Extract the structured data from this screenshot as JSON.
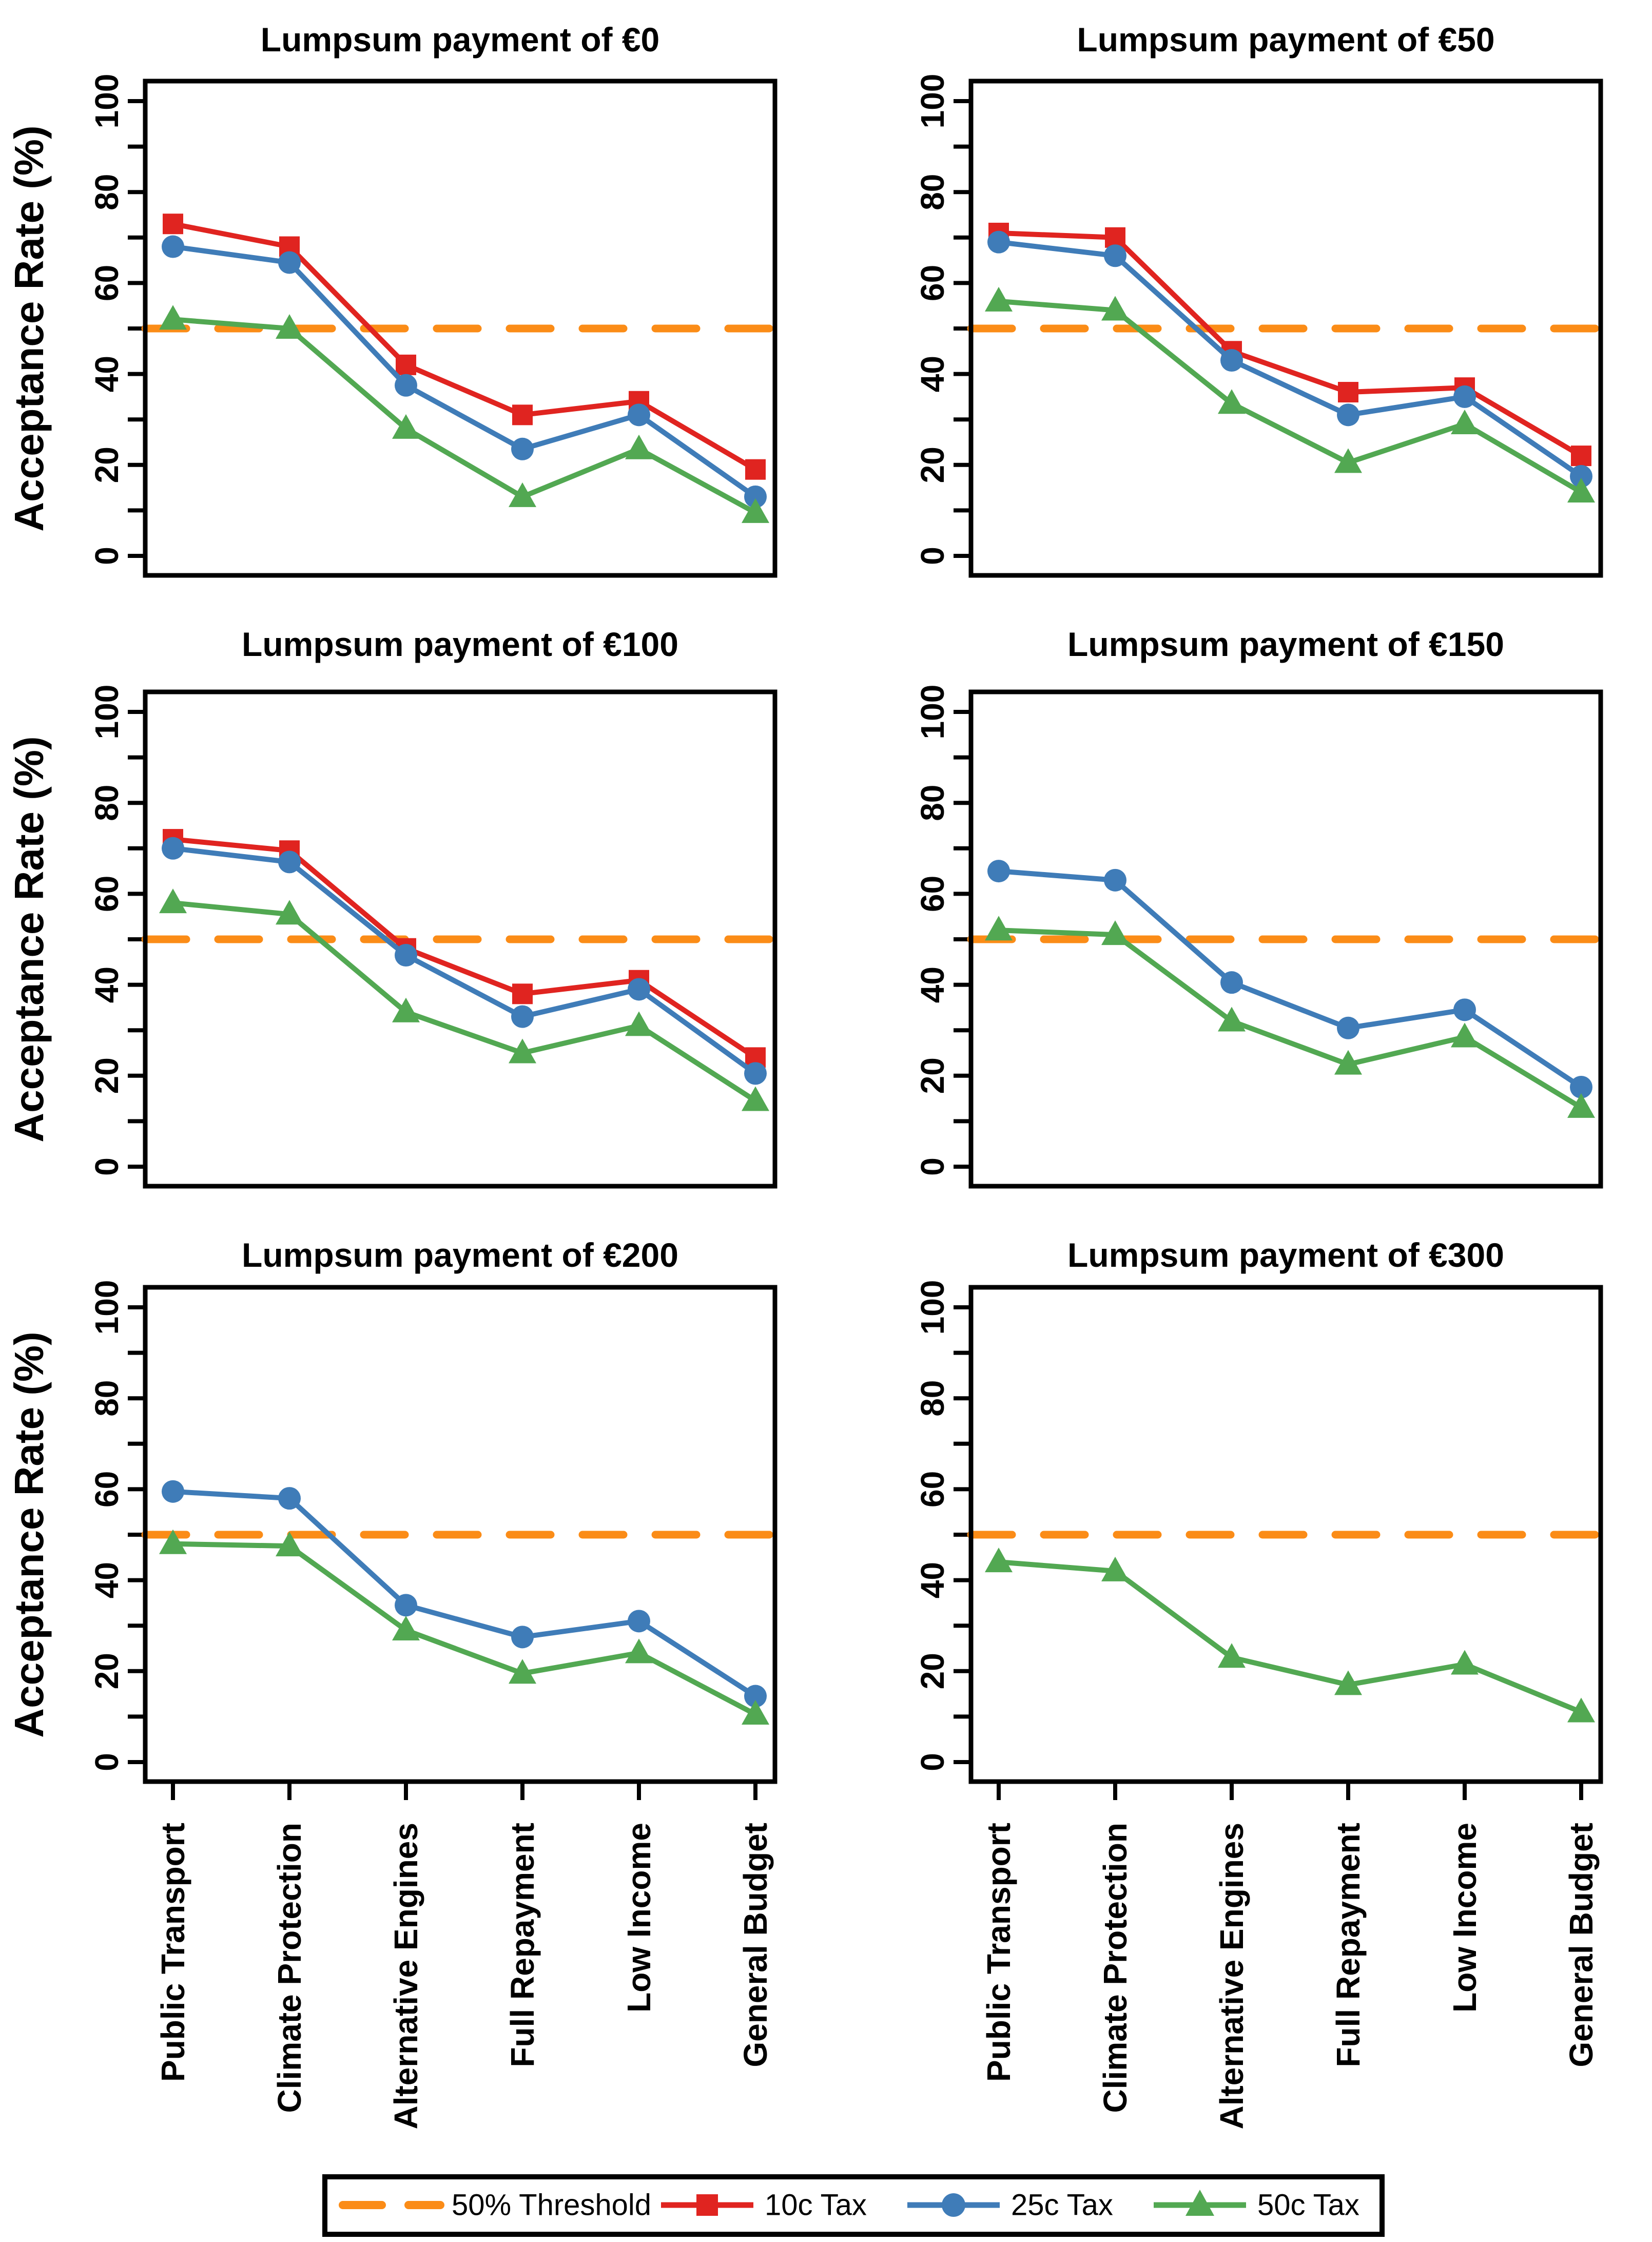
{
  "figure": {
    "ylabel": "Acceptance Rate (%)",
    "categories": [
      "Public Transport",
      "Climate Protection",
      "Alternative Engines",
      "Full Repayment",
      "Low Income",
      "General Budget"
    ],
    "colors": {
      "threshold_orange": "#FB8C17",
      "tax10_red": "#E02420",
      "tax25_blue": "#3F7CB8",
      "tax50_green": "#52A852",
      "axis_black": "#000000",
      "background": "#FFFFFF"
    },
    "threshold_value": 50
  },
  "chart_data": [
    {
      "type": "line",
      "title": "Lumpsum payment of €0",
      "xlabel": "",
      "ylabel": "Acceptance Rate (%)",
      "ylim": [
        0,
        100
      ],
      "ytick_labels": [
        0,
        20,
        40,
        60,
        80,
        100
      ],
      "ytick_step": 10,
      "grid": false,
      "threshold": 50,
      "categories": [
        "Public Transport",
        "Climate Protection",
        "Alternative Engines",
        "Full Repayment",
        "Low Income",
        "General Budget"
      ],
      "series": [
        {
          "name": "10c Tax",
          "color": "#E02420",
          "marker": "square",
          "values": [
            73,
            68,
            42,
            31,
            34,
            19
          ]
        },
        {
          "name": "25c Tax",
          "color": "#3F7CB8",
          "marker": "circle",
          "values": [
            68,
            64.5,
            37.5,
            23.5,
            31,
            13
          ]
        },
        {
          "name": "50c Tax",
          "color": "#52A852",
          "marker": "triangle",
          "values": [
            52,
            50,
            28,
            13,
            23.5,
            9.5
          ]
        }
      ],
      "show_x_labels": false,
      "show_y_title": true
    },
    {
      "type": "line",
      "title": "Lumpsum payment of €50",
      "xlabel": "",
      "ylabel": "",
      "ylim": [
        0,
        100
      ],
      "ytick_labels": [
        0,
        20,
        40,
        60,
        80,
        100
      ],
      "ytick_step": 10,
      "grid": false,
      "threshold": 50,
      "categories": [
        "Public Transport",
        "Climate Protection",
        "Alternative Engines",
        "Full Repayment",
        "Low Income",
        "General Budget"
      ],
      "series": [
        {
          "name": "10c Tax",
          "color": "#E02420",
          "marker": "square",
          "values": [
            71,
            70,
            45,
            36,
            37,
            22
          ]
        },
        {
          "name": "25c Tax",
          "color": "#3F7CB8",
          "marker": "circle",
          "values": [
            69,
            66,
            43,
            31,
            35,
            17.5
          ]
        },
        {
          "name": "50c Tax",
          "color": "#52A852",
          "marker": "triangle",
          "values": [
            56,
            54,
            33.5,
            20.5,
            29,
            14
          ]
        }
      ],
      "show_x_labels": false,
      "show_y_title": false
    },
    {
      "type": "line",
      "title": "Lumpsum payment of €100",
      "xlabel": "",
      "ylabel": "Acceptance Rate (%)",
      "ylim": [
        0,
        100
      ],
      "ytick_labels": [
        0,
        20,
        40,
        60,
        80,
        100
      ],
      "ytick_step": 10,
      "grid": false,
      "threshold": 50,
      "categories": [
        "Public Transport",
        "Climate Protection",
        "Alternative Engines",
        "Full Repayment",
        "Low Income",
        "General Budget"
      ],
      "series": [
        {
          "name": "10c Tax",
          "color": "#E02420",
          "marker": "square",
          "values": [
            72,
            69.5,
            48,
            38,
            41,
            24
          ]
        },
        {
          "name": "25c Tax",
          "color": "#3F7CB8",
          "marker": "circle",
          "values": [
            70,
            67,
            46.5,
            33,
            39,
            20.5
          ]
        },
        {
          "name": "50c Tax",
          "color": "#52A852",
          "marker": "triangle",
          "values": [
            58,
            55.5,
            34,
            25,
            31,
            14.5
          ]
        }
      ],
      "show_x_labels": false,
      "show_y_title": true
    },
    {
      "type": "line",
      "title": "Lumpsum payment of €150",
      "xlabel": "",
      "ylabel": "",
      "ylim": [
        0,
        100
      ],
      "ytick_labels": [
        0,
        20,
        40,
        60,
        80,
        100
      ],
      "ytick_step": 10,
      "grid": false,
      "threshold": 50,
      "categories": [
        "Public Transport",
        "Climate Protection",
        "Alternative Engines",
        "Full Repayment",
        "Low Income",
        "General Budget"
      ],
      "series": [
        {
          "name": "25c Tax",
          "color": "#3F7CB8",
          "marker": "circle",
          "values": [
            65,
            63,
            40.5,
            30.5,
            34.5,
            17.5
          ]
        },
        {
          "name": "50c Tax",
          "color": "#52A852",
          "marker": "triangle",
          "values": [
            52,
            51,
            32,
            22.5,
            28.5,
            13
          ]
        }
      ],
      "show_x_labels": false,
      "show_y_title": false
    },
    {
      "type": "line",
      "title": "Lumpsum payment of €200",
      "xlabel": "",
      "ylabel": "Acceptance Rate (%)",
      "ylim": [
        0,
        100
      ],
      "ytick_labels": [
        0,
        20,
        40,
        60,
        80,
        100
      ],
      "ytick_step": 10,
      "grid": false,
      "threshold": 50,
      "categories": [
        "Public Transport",
        "Climate Protection",
        "Alternative Engines",
        "Full Repayment",
        "Low Income",
        "General Budget"
      ],
      "series": [
        {
          "name": "25c Tax",
          "color": "#3F7CB8",
          "marker": "circle",
          "values": [
            59.5,
            58,
            34.5,
            27.5,
            31,
            14.5
          ]
        },
        {
          "name": "50c Tax",
          "color": "#52A852",
          "marker": "triangle",
          "values": [
            48,
            47.5,
            29,
            19.5,
            24,
            10.5
          ]
        }
      ],
      "show_x_labels": true,
      "show_y_title": true
    },
    {
      "type": "line",
      "title": "Lumpsum payment of €300",
      "xlabel": "",
      "ylabel": "",
      "ylim": [
        0,
        100
      ],
      "ytick_labels": [
        0,
        20,
        40,
        60,
        80,
        100
      ],
      "ytick_step": 10,
      "grid": false,
      "threshold": 50,
      "categories": [
        "Public Transport",
        "Climate Protection",
        "Alternative Engines",
        "Full Repayment",
        "Low Income",
        "General Budget"
      ],
      "series": [
        {
          "name": "50c Tax",
          "color": "#52A852",
          "marker": "triangle",
          "values": [
            44,
            42,
            23,
            17,
            21.5,
            11
          ]
        }
      ],
      "show_x_labels": true,
      "show_y_title": false
    }
  ],
  "legend": {
    "position": "bottom-center",
    "items": [
      {
        "label": "50% Threshold",
        "color": "#FB8C17",
        "style": "dashed-line",
        "marker": "none"
      },
      {
        "label": "10c Tax",
        "color": "#E02420",
        "style": "solid-line",
        "marker": "square"
      },
      {
        "label": "25c Tax",
        "color": "#3F7CB8",
        "style": "solid-line",
        "marker": "circle"
      },
      {
        "label": "50c Tax",
        "color": "#52A852",
        "style": "solid-line",
        "marker": "triangle"
      }
    ]
  }
}
